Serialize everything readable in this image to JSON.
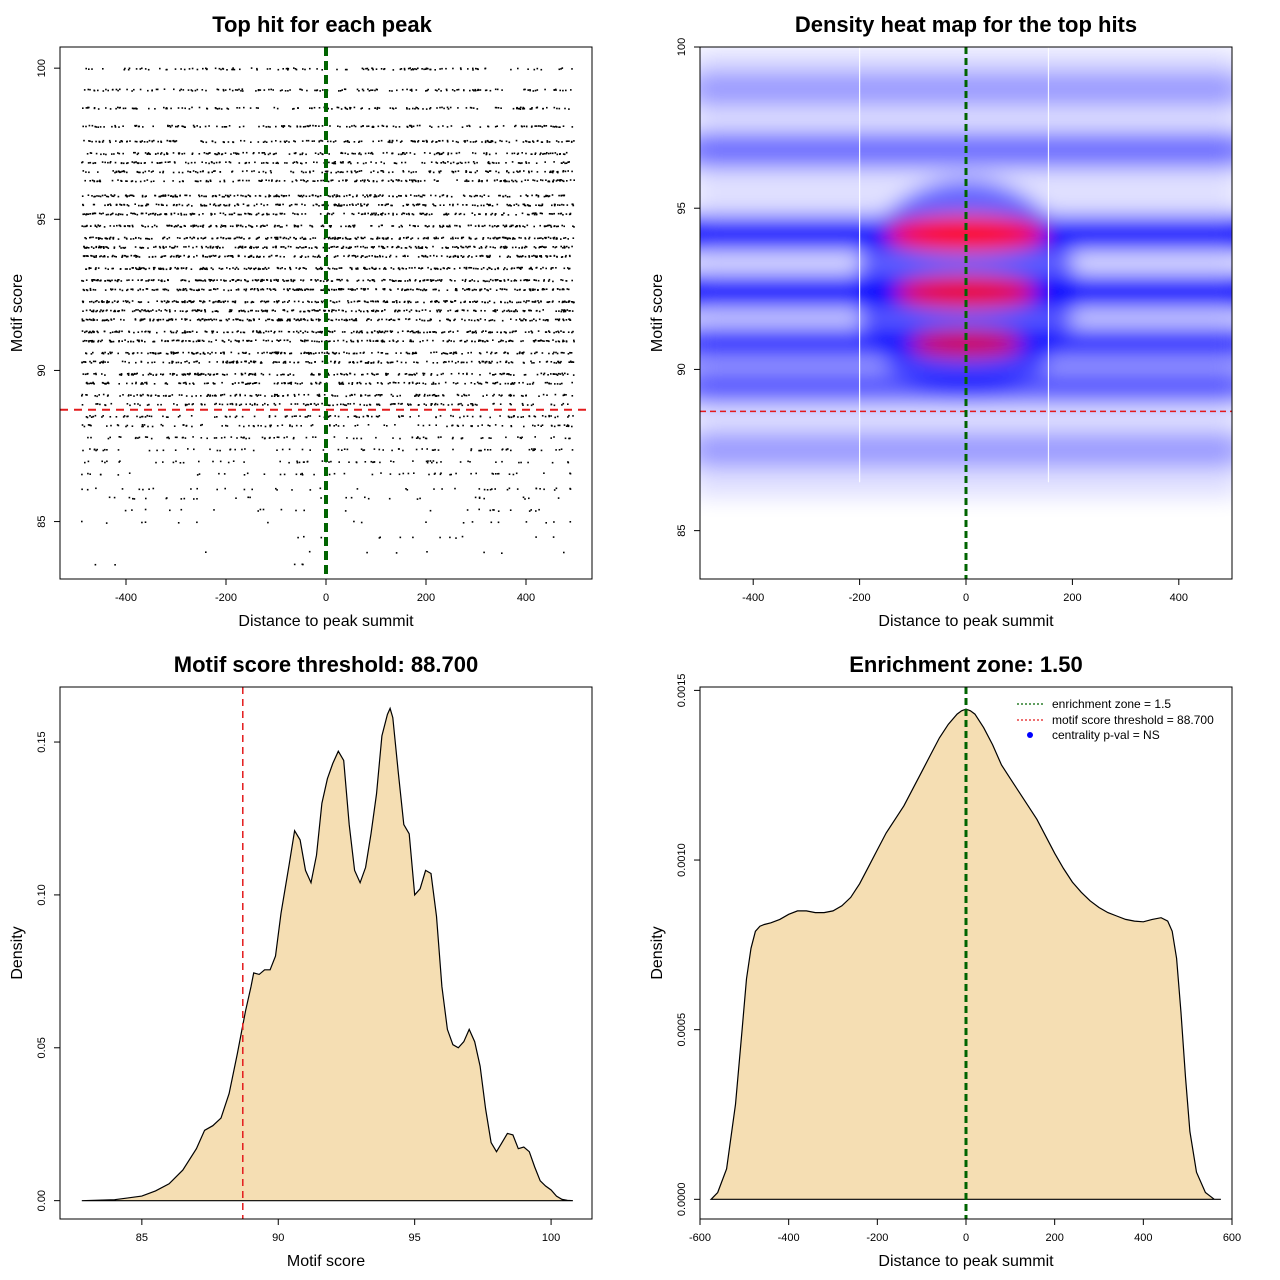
{
  "chart_data": [
    {
      "id": "scatter",
      "type": "scatter",
      "title": "Top hit for each peak",
      "xlabel": "Distance to peak summit",
      "ylabel": "Motif score",
      "xlim": [
        -532,
        532
      ],
      "ylim": [
        83.1,
        100.7
      ],
      "xticks": [
        -400,
        -200,
        0,
        200,
        400
      ],
      "yticks": [
        85,
        90,
        95,
        100
      ],
      "points_x_range": [
        -490,
        495
      ],
      "score_levels": [
        100.0,
        99.3,
        98.7,
        98.1,
        97.6,
        97.2,
        96.9,
        96.6,
        96.3,
        95.8,
        95.5,
        95.2,
        94.8,
        94.4,
        94.1,
        93.8,
        93.4,
        93.0,
        92.7,
        92.3,
        92.0,
        91.7,
        91.3,
        91.0,
        90.6,
        90.3,
        89.9,
        89.6,
        89.2,
        88.9,
        88.5,
        88.2,
        87.8,
        87.4,
        87.0,
        86.6,
        86.1,
        85.8,
        85.4,
        85.0,
        84.5,
        84.0,
        83.6
      ],
      "score_weights": [
        0.45,
        0.55,
        0.55,
        0.6,
        0.7,
        0.65,
        0.6,
        0.6,
        0.7,
        0.85,
        0.8,
        0.8,
        0.85,
        0.95,
        0.95,
        0.9,
        0.9,
        0.95,
        0.95,
        0.95,
        0.9,
        0.9,
        0.85,
        0.85,
        0.8,
        0.75,
        0.75,
        0.7,
        0.65,
        0.55,
        0.45,
        0.4,
        0.35,
        0.3,
        0.25,
        0.2,
        0.16,
        0.12,
        0.1,
        0.07,
        0.05,
        0.03,
        0.02
      ],
      "vline": {
        "x": 0,
        "color": "#006400"
      },
      "hline": {
        "y": 88.7,
        "color": "#e31a1c"
      }
    },
    {
      "id": "heatmap",
      "type": "heatmap",
      "title": "Density heat map for the top hits",
      "xlabel": "Distance to peak summit",
      "ylabel": "Motif score",
      "xlim": [
        -500,
        500
      ],
      "ylim": [
        83.5,
        100
      ],
      "xticks": [
        -400,
        -200,
        0,
        200,
        400
      ],
      "yticks": [
        85,
        90,
        95,
        100
      ],
      "hot_spots": [
        {
          "x": 0,
          "y": 94.2,
          "intensity": 1.0
        },
        {
          "x": 0,
          "y": 92.4,
          "intensity": 0.85
        },
        {
          "x": 0,
          "y": 90.8,
          "intensity": 0.6
        }
      ],
      "bands": [
        {
          "y": 94.2,
          "intensity": 0.95
        },
        {
          "y": 92.4,
          "intensity": 0.95
        },
        {
          "y": 90.8,
          "intensity": 0.75
        },
        {
          "y": 96.8,
          "intensity": 0.5
        },
        {
          "y": 98.7,
          "intensity": 0.3
        },
        {
          "y": 89.5,
          "intensity": 0.6
        },
        {
          "y": 87.5,
          "intensity": 0.3
        }
      ],
      "white_vlines": [
        -200,
        155
      ],
      "vline": {
        "x": 0,
        "color": "#006400"
      },
      "hline": {
        "y": 88.7,
        "color": "#e31a1c"
      },
      "colors": {
        "low": "#ffffff",
        "mid": "#0000ff",
        "high": "#ff0000"
      }
    },
    {
      "id": "score-density",
      "type": "area",
      "title": "Motif score threshold: 88.700",
      "xlabel": "Motif score",
      "ylabel": "Density",
      "xlim": [
        82.0,
        101.5
      ],
      "ylim": [
        -0.006,
        0.168
      ],
      "xticks": [
        85,
        90,
        95,
        100
      ],
      "yticks": [
        0.0,
        0.05,
        0.1,
        0.15
      ],
      "ytick_labels": [
        "0.00",
        "0.05",
        "0.10",
        "0.15"
      ],
      "x": [
        82.8,
        84.0,
        85.0,
        85.5,
        86.0,
        86.5,
        87.0,
        87.3,
        87.6,
        87.9,
        88.2,
        88.5,
        88.8,
        89.0,
        89.1,
        89.3,
        89.5,
        89.7,
        89.9,
        90.1,
        90.4,
        90.6,
        90.8,
        91.0,
        91.2,
        91.4,
        91.6,
        91.8,
        92.0,
        92.2,
        92.4,
        92.6,
        92.8,
        93.0,
        93.2,
        93.4,
        93.6,
        93.8,
        94.0,
        94.1,
        94.2,
        94.4,
        94.6,
        94.8,
        95.0,
        95.2,
        95.4,
        95.6,
        95.8,
        96.0,
        96.2,
        96.4,
        96.6,
        96.8,
        97.0,
        97.2,
        97.4,
        97.6,
        97.8,
        98.0,
        98.2,
        98.4,
        98.6,
        98.8,
        99.0,
        99.2,
        99.4,
        99.6,
        99.8,
        100.0,
        100.2,
        100.4,
        100.6,
        100.8
      ],
      "y": [
        0.0,
        0.0003,
        0.0015,
        0.0032,
        0.0055,
        0.01,
        0.017,
        0.023,
        0.0245,
        0.027,
        0.035,
        0.048,
        0.062,
        0.07,
        0.0745,
        0.074,
        0.0755,
        0.0755,
        0.08,
        0.094,
        0.11,
        0.121,
        0.118,
        0.108,
        0.104,
        0.113,
        0.13,
        0.138,
        0.143,
        0.147,
        0.144,
        0.123,
        0.108,
        0.104,
        0.109,
        0.12,
        0.133,
        0.152,
        0.159,
        0.161,
        0.158,
        0.14,
        0.123,
        0.12,
        0.1,
        0.102,
        0.108,
        0.107,
        0.093,
        0.07,
        0.056,
        0.051,
        0.05,
        0.052,
        0.056,
        0.052,
        0.044,
        0.03,
        0.019,
        0.016,
        0.019,
        0.022,
        0.0215,
        0.017,
        0.0175,
        0.016,
        0.011,
        0.0065,
        0.0048,
        0.0035,
        0.0015,
        0.0004,
        0.0001,
        0.0
      ],
      "vline": {
        "x": 88.7,
        "color": "#e31a1c"
      },
      "fill": "#f5deb3"
    },
    {
      "id": "distance-density",
      "type": "area",
      "title": "Enrichment zone: 1.50",
      "xlabel": "Distance to peak summit",
      "ylabel": "Density",
      "xlim": [
        -600,
        600
      ],
      "ylim": [
        -5.8e-05,
        0.00151
      ],
      "xticks": [
        -600,
        -400,
        -200,
        0,
        200,
        400,
        600
      ],
      "yticks": [
        0.0,
        0.0005,
        0.001,
        0.0015
      ],
      "ytick_labels": [
        "0.0000",
        "0.0005",
        "0.0010",
        "0.0015"
      ],
      "x": [
        -575,
        -560,
        -540,
        -520,
        -505,
        -495,
        -485,
        -475,
        -465,
        -455,
        -440,
        -420,
        -400,
        -380,
        -360,
        -340,
        -320,
        -300,
        -280,
        -260,
        -240,
        -220,
        -200,
        -180,
        -160,
        -140,
        -120,
        -100,
        -80,
        -60,
        -40,
        -20,
        -10,
        0,
        10,
        20,
        40,
        60,
        80,
        100,
        120,
        140,
        160,
        180,
        200,
        220,
        240,
        260,
        280,
        300,
        320,
        340,
        360,
        380,
        400,
        420,
        440,
        455,
        465,
        475,
        485,
        495,
        505,
        520,
        540,
        560,
        575
      ],
      "y": [
        0.0,
        2e-05,
        9e-05,
        0.00028,
        0.0005,
        0.00065,
        0.00074,
        0.00079,
        0.000805,
        0.00081,
        0.000815,
        0.000825,
        0.00084,
        0.00085,
        0.00085,
        0.000845,
        0.000845,
        0.00085,
        0.000865,
        0.00089,
        0.00093,
        0.00098,
        0.00103,
        0.00108,
        0.00112,
        0.00116,
        0.00121,
        0.00126,
        0.00131,
        0.00136,
        0.0014,
        0.00143,
        0.00144,
        0.001445,
        0.00144,
        0.00143,
        0.00139,
        0.00134,
        0.00128,
        0.00124,
        0.0012,
        0.00116,
        0.00112,
        0.00107,
        0.00102,
        0.000975,
        0.000935,
        0.000905,
        0.00088,
        0.00086,
        0.000845,
        0.000835,
        0.000825,
        0.00082,
        0.000818,
        0.000825,
        0.00083,
        0.00082,
        0.00079,
        0.00071,
        0.00055,
        0.00036,
        0.0002,
        8e-05,
        2e-05,
        0.0,
        0.0
      ],
      "vline": {
        "x": 0,
        "color": "#006400"
      },
      "fill": "#f5deb3",
      "legend": {
        "position": "top-right",
        "entries": [
          {
            "label": "enrichment zone = 1.5",
            "color": "#006400",
            "style": "dotted-line"
          },
          {
            "label": "motif score threshold = 88.700",
            "color": "#e31a1c",
            "style": "dotted-line"
          },
          {
            "label": "centrality p-val = NS",
            "color": "#0000ff",
            "style": "point"
          }
        ]
      }
    }
  ]
}
